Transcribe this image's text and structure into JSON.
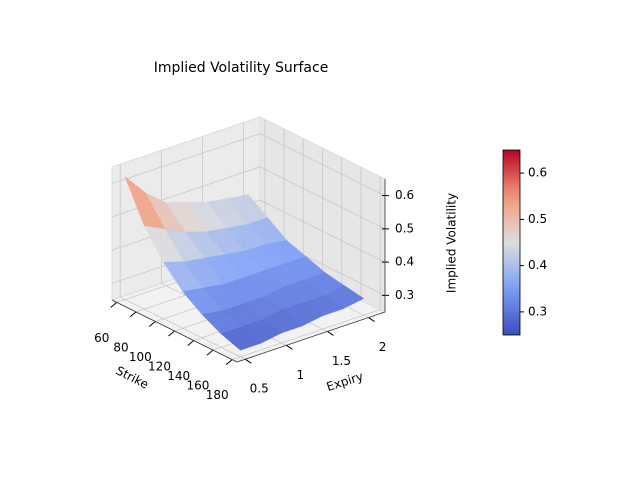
{
  "chart_data": {
    "type": "surface",
    "title": "Implied Volatility Surface",
    "x_label": "Strike",
    "y_label": "Expiry",
    "z_label": "Implied Volatility",
    "x": [
      60,
      80,
      100,
      120,
      140,
      160,
      180
    ],
    "y": [
      0.5,
      0.75,
      1.0,
      1.25,
      1.5,
      1.75,
      2.0
    ],
    "z": [
      [
        0.62,
        0.5,
        0.42,
        0.36,
        0.32,
        0.29,
        0.27
      ],
      [
        0.55,
        0.47,
        0.4,
        0.35,
        0.31,
        0.29,
        0.27
      ],
      [
        0.5,
        0.44,
        0.39,
        0.34,
        0.31,
        0.29,
        0.28
      ],
      [
        0.48,
        0.42,
        0.38,
        0.34,
        0.31,
        0.3,
        0.28
      ],
      [
        0.46,
        0.41,
        0.37,
        0.34,
        0.32,
        0.3,
        0.29
      ],
      [
        0.45,
        0.4,
        0.37,
        0.34,
        0.32,
        0.3,
        0.29
      ],
      [
        0.44,
        0.4,
        0.36,
        0.34,
        0.32,
        0.31,
        0.3
      ]
    ],
    "xlim": [
      55,
      185
    ],
    "ylim": [
      0.4,
      2.2
    ],
    "zlim": [
      0.25,
      0.65
    ],
    "xticks": [
      60,
      80,
      100,
      120,
      140,
      160,
      180
    ],
    "yticks": [
      0.5,
      1.0,
      1.5,
      2.0
    ],
    "zticks": [
      0.3,
      0.4,
      0.5,
      0.6
    ],
    "colormap": "coolwarm",
    "clim": [
      0.25,
      0.65
    ],
    "colorbar_ticks": [
      0.3,
      0.4,
      0.5,
      0.6
    ],
    "grid": true
  }
}
